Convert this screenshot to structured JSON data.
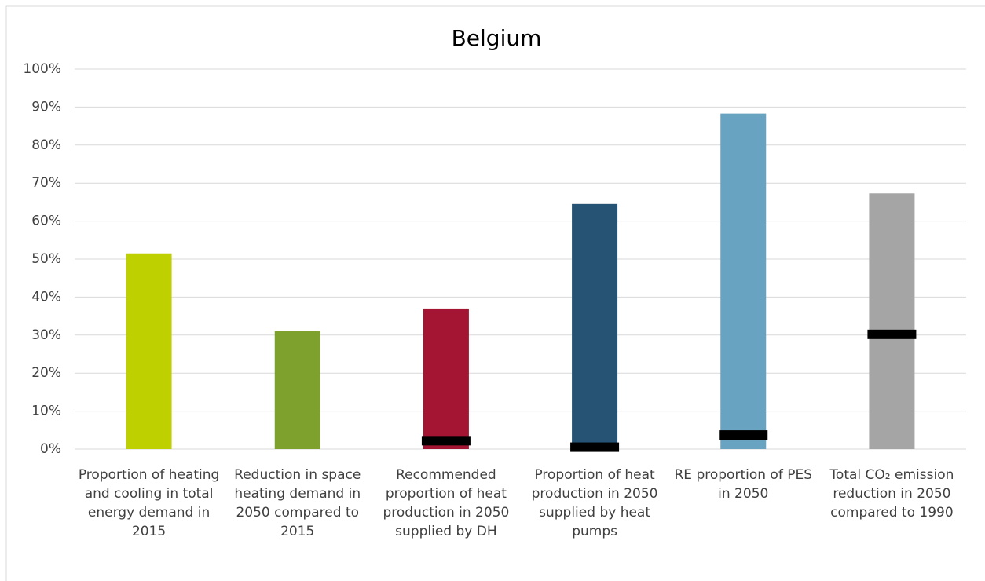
{
  "chart_data": {
    "type": "bar",
    "title": "Belgium",
    "categories": [
      "Proportion of heating and cooling in total energy demand in 2015",
      "Reduction in space heating demand in 2050 compared to 2015",
      "Recommended proportion of heat production in 2050 supplied by DH",
      "Proportion of heat production in 2050 supplied by heat pumps",
      "RE proportion of PES in 2050",
      "Total CO₂ emission reduction in 2050 compared to 1990"
    ],
    "values": [
      51.5,
      31,
      37,
      64.5,
      88.3,
      67.3
    ],
    "colors": [
      "#bfd000",
      "#7ea12e",
      "#a31532",
      "#265374",
      "#68a4c2",
      "#a5a5a5"
    ],
    "markers": {
      "color": "#000000",
      "values": [
        null,
        null,
        2.2,
        0.5,
        3.7,
        30.2
      ]
    },
    "ylim": [
      0,
      100
    ],
    "yticks": [
      {
        "value": 0,
        "label": "0%"
      },
      {
        "value": 10,
        "label": "10%"
      },
      {
        "value": 20,
        "label": "20%"
      },
      {
        "value": 30,
        "label": "30%"
      },
      {
        "value": 40,
        "label": "40%"
      },
      {
        "value": 50,
        "label": "50%"
      },
      {
        "value": 60,
        "label": "60%"
      },
      {
        "value": 70,
        "label": "70%"
      },
      {
        "value": 80,
        "label": "80%"
      },
      {
        "value": 90,
        "label": "90%"
      },
      {
        "value": 100,
        "label": "100%"
      }
    ],
    "grid": true
  }
}
